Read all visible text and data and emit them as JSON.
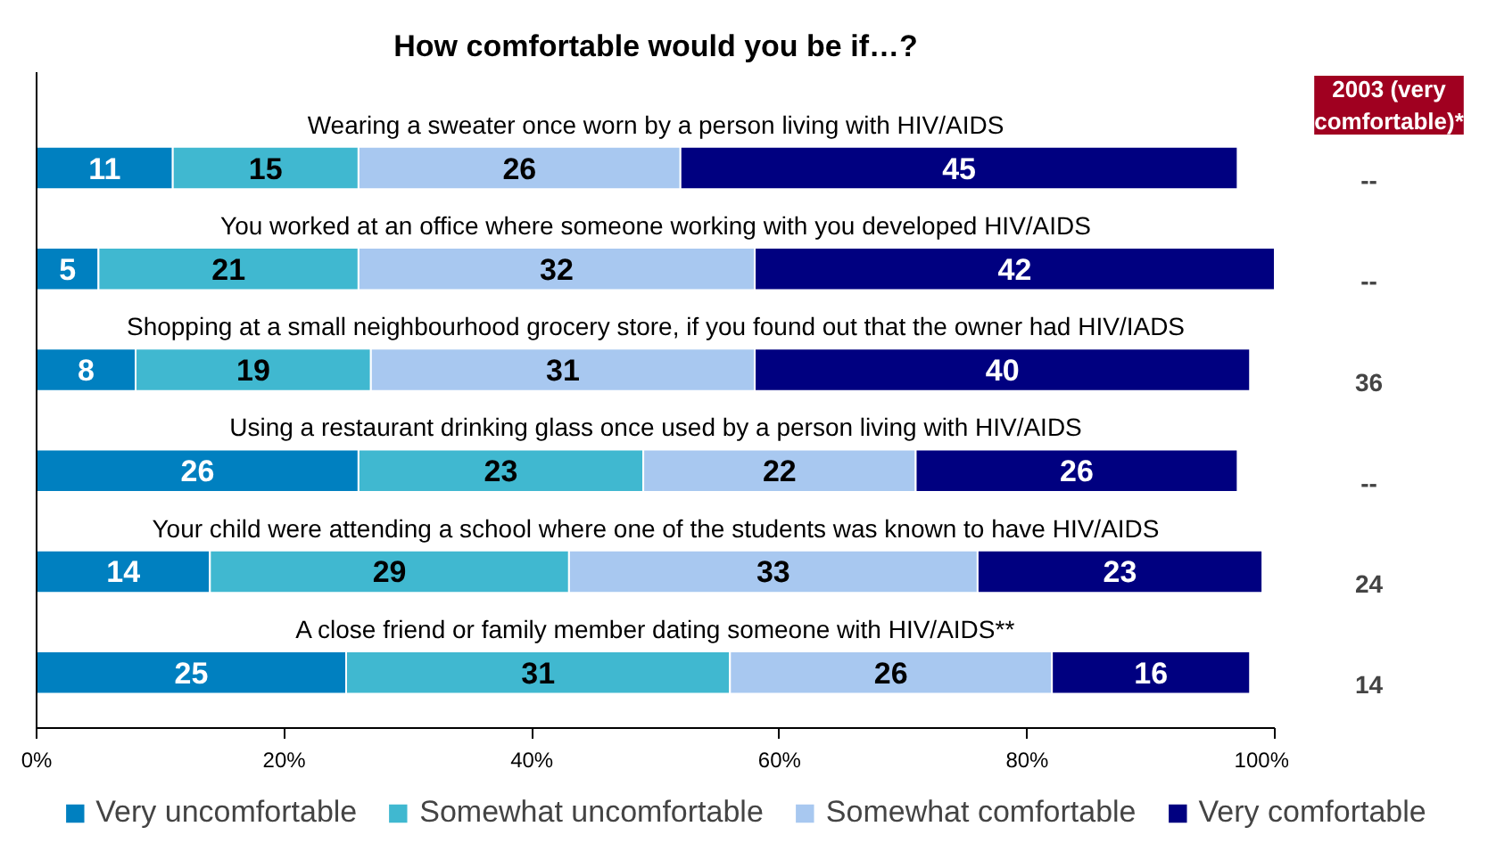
{
  "chart_data": {
    "type": "bar",
    "orientation": "horizontal",
    "stacked": true,
    "title": "How comfortable would you be if…?",
    "categories": [
      "Wearing a sweater once worn by a person living with HIV/AIDS",
      "You worked at an office where someone working with you developed HIV/AIDS",
      "Shopping at a small neighbourhood grocery store, if you found out that the owner had HIV/IADS",
      "Using a restaurant drinking glass once used by a person living with HIV/AIDS",
      "Your child were attending a school where one of the students was known to have HIV/AIDS",
      "A close friend or family member dating someone with HIV/AIDS**"
    ],
    "series": [
      {
        "name": "Very uncomfortable",
        "color": "#0080c0",
        "values": [
          11,
          5,
          8,
          26,
          14,
          25
        ]
      },
      {
        "name": "Somewhat uncomfortable",
        "color": "#40b8d0",
        "values": [
          15,
          21,
          19,
          23,
          29,
          31
        ]
      },
      {
        "name": "Somewhat comfortable",
        "color": "#a8c8f0",
        "values": [
          26,
          32,
          31,
          22,
          33,
          26
        ]
      },
      {
        "name": "Very comfortable",
        "color": "#000080",
        "values": [
          45,
          42,
          40,
          26,
          23,
          16
        ]
      }
    ],
    "xlim": [
      0,
      100
    ],
    "xticks": [
      {
        "value": 0,
        "label": "0%"
      },
      {
        "value": 20,
        "label": "20%"
      },
      {
        "value": 40,
        "label": "40%"
      },
      {
        "value": 60,
        "label": "60%"
      },
      {
        "value": 80,
        "label": "80%"
      },
      {
        "value": 100,
        "label": "100%"
      }
    ],
    "data_labels": true,
    "grid": false,
    "legend": "bottom",
    "annotations": [
      "2003 (very comfortable)*",
      "--",
      "--",
      "36",
      "--",
      "24",
      "14"
    ]
  }
}
